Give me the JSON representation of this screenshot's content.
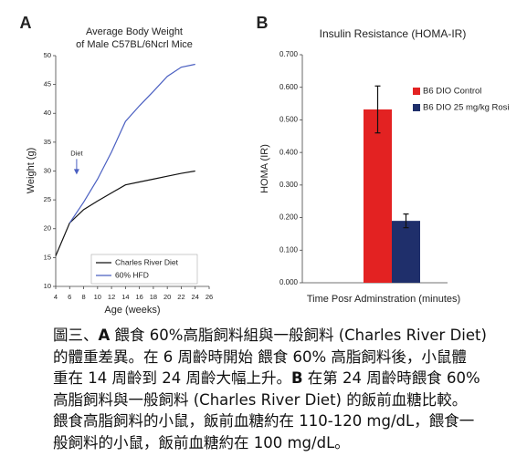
{
  "chart_data": [
    {
      "type": "line",
      "panel_label": "A",
      "title": [
        "Average Body Weight",
        "of Male C57BL/6Ncrl Mice"
      ],
      "x_label": "Age (weeks)",
      "y_label": "Weight (g)",
      "x": [
        4,
        6,
        8,
        10,
        12,
        14,
        16,
        18,
        20,
        22,
        24
      ],
      "series": [
        {
          "name": "Charles River Diet",
          "color": "#111111",
          "values": [
            15.3,
            21,
            23.3,
            24.8,
            26.2,
            27.6,
            28.1,
            28.6,
            29.1,
            29.6,
            30
          ]
        },
        {
          "name": "60% HFD",
          "color": "#4a5fc1",
          "values": [
            null,
            21,
            24.6,
            28.6,
            33.3,
            38.6,
            41.3,
            43.8,
            46.4,
            48,
            48.5
          ]
        }
      ],
      "xlim": [
        4,
        26
      ],
      "xticks": [
        4,
        6,
        8,
        10,
        12,
        14,
        16,
        18,
        20,
        22,
        24,
        26
      ],
      "ylim": [
        10,
        50
      ],
      "yticks": [
        10,
        15,
        20,
        25,
        30,
        35,
        40,
        45,
        50
      ],
      "annotation": {
        "text": "Diet",
        "x": 7,
        "y": 30.5,
        "color": "#888888"
      },
      "legend": "lower right"
    },
    {
      "type": "bar",
      "panel_label": "B",
      "title": "Insulin Resistance (HOMA-IR)",
      "x_label": "Time Posr Adminstration (minutes)",
      "y_label": "HOMA (IR)",
      "series": [
        {
          "name": "B6 DIO Control",
          "color": "#e32222",
          "values": [
            0.532
          ],
          "errors": [
            0.072
          ]
        },
        {
          "name": "B6 DIO 25 mg/kg Rosi",
          "color": "#1f2f6b",
          "values": [
            0.19
          ],
          "errors": [
            0.021
          ]
        }
      ],
      "ylim": [
        0,
        0.7
      ],
      "yticks": [
        {
          "value": 0,
          "label": "0.000"
        },
        {
          "value": 0.1,
          "label": "0.100"
        },
        {
          "value": 0.2,
          "label": "0.200"
        },
        {
          "value": 0.3,
          "label": "0.300"
        },
        {
          "value": 0.4,
          "label": "0.400"
        },
        {
          "value": 0.5,
          "label": "0.500"
        },
        {
          "value": 0.6,
          "label": "0.600"
        },
        {
          "value": 0.7,
          "label": "0.700"
        }
      ],
      "legend": "upper right"
    }
  ],
  "caption": [
    [
      {
        "text": "圖三、"
      },
      {
        "text": "A",
        "bold": true
      },
      {
        "text": " 餵食 60%高脂飼料組與一般飼料 (Charles River Diet)"
      }
    ],
    [
      {
        "text": "的體重差異。在 6 周齡時開始 餵食 60% 高脂飼料後，小鼠體"
      }
    ],
    [
      {
        "text": "重在 14 周齡到 24 周齡大幅上升。"
      },
      {
        "text": "B",
        "bold": true
      },
      {
        "text": " 在第 24 周齡時餵食 60%"
      }
    ],
    [
      {
        "text": "高脂飼料與一般飼料 (Charles River Diet) 的飯前血糖比較。"
      }
    ],
    [
      {
        "text": "餵食高脂飼料的小鼠，飯前血糖約在 110-120 mg/dL，餵食一"
      }
    ],
    [
      {
        "text": "般飼料的小鼠，飯前血糖約在 100 mg/dL。"
      }
    ]
  ]
}
